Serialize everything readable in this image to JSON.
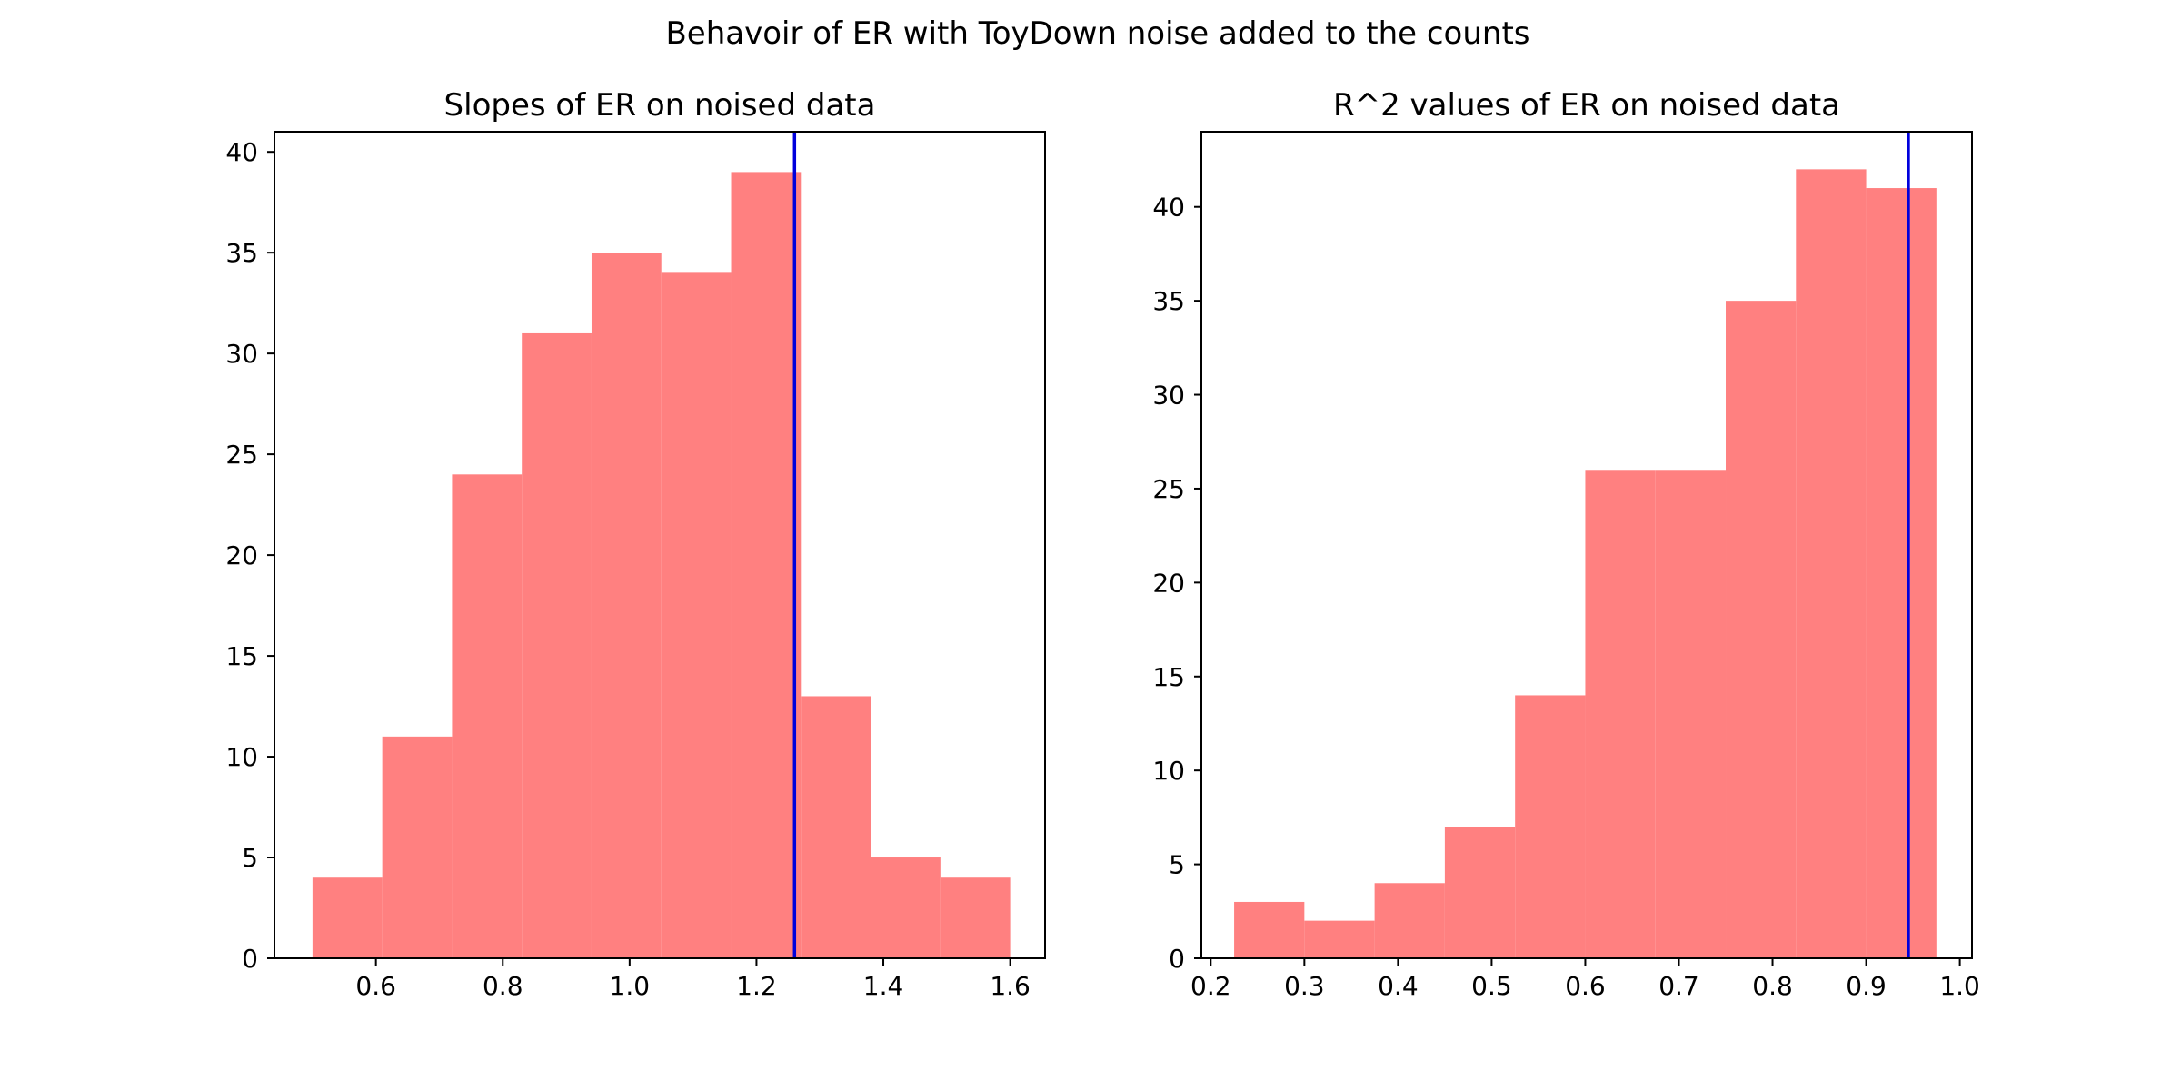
{
  "figure": {
    "suptitle": "Behavoir of ER with ToyDown noise added to the counts"
  },
  "colors": {
    "bar_fill": "#ff8080",
    "ref_line": "#0000dd",
    "axis": "#000000"
  },
  "chart_data": [
    {
      "type": "bar",
      "title": "Slopes of ER on noised data",
      "xlabel": "",
      "ylabel": "",
      "bin_edges": [
        0.5,
        0.61,
        0.72,
        0.83,
        0.94,
        1.05,
        1.16,
        1.27,
        1.38,
        1.49,
        1.6
      ],
      "values": [
        4,
        11,
        24,
        31,
        35,
        34,
        39,
        13,
        5,
        4
      ],
      "ref_line_x": 1.26,
      "xlim": [
        0.44,
        1.655
      ],
      "ylim": [
        0,
        41
      ],
      "xticks": [
        0.6,
        0.8,
        1.0,
        1.2,
        1.4,
        1.6
      ],
      "xtick_labels": [
        "0.6",
        "0.8",
        "1.0",
        "1.2",
        "1.4",
        "1.6"
      ],
      "yticks": [
        0,
        5,
        10,
        15,
        20,
        25,
        30,
        35,
        40
      ],
      "ytick_labels": [
        "0",
        "5",
        "10",
        "15",
        "20",
        "25",
        "30",
        "35",
        "40"
      ]
    },
    {
      "type": "bar",
      "title": "R^2 values of ER on noised data",
      "xlabel": "",
      "ylabel": "",
      "bin_edges": [
        0.225,
        0.3,
        0.375,
        0.45,
        0.525,
        0.6,
        0.675,
        0.75,
        0.825,
        0.9,
        0.975
      ],
      "values": [
        3,
        2,
        4,
        7,
        14,
        26,
        26,
        35,
        42,
        41
      ],
      "ref_line_x": 0.945,
      "xlim": [
        0.19,
        1.013
      ],
      "ylim": [
        0,
        44
      ],
      "xticks": [
        0.2,
        0.3,
        0.4,
        0.5,
        0.6,
        0.7,
        0.8,
        0.9,
        1.0
      ],
      "xtick_labels": [
        "0.2",
        "0.3",
        "0.4",
        "0.5",
        "0.6",
        "0.7",
        "0.8",
        "0.9",
        "1.0"
      ],
      "yticks": [
        0,
        5,
        10,
        15,
        20,
        25,
        30,
        35,
        40
      ],
      "ytick_labels": [
        "0",
        "5",
        "10",
        "15",
        "20",
        "25",
        "30",
        "35",
        "40"
      ]
    }
  ]
}
